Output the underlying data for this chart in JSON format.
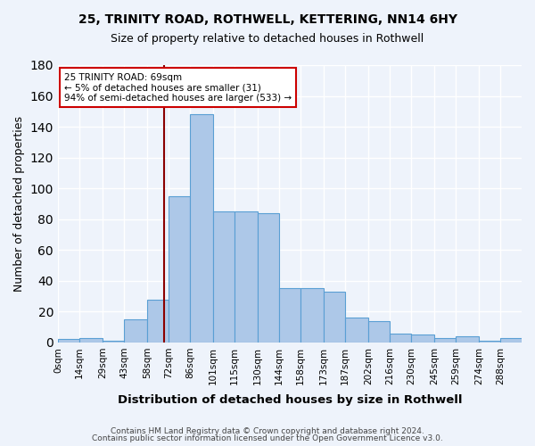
{
  "title_line1": "25, TRINITY ROAD, ROTHWELL, KETTERING, NN14 6HY",
  "title_line2": "Size of property relative to detached houses in Rothwell",
  "xlabel": "Distribution of detached houses by size in Rothwell",
  "ylabel": "Number of detached properties",
  "bin_labels": [
    "0sqm",
    "14sqm",
    "29sqm",
    "43sqm",
    "58sqm",
    "72sqm",
    "86sqm",
    "101sqm",
    "115sqm",
    "130sqm",
    "144sqm",
    "158sqm",
    "173sqm",
    "187sqm",
    "202sqm",
    "216sqm",
    "230sqm",
    "245sqm",
    "259sqm",
    "274sqm",
    "288sqm"
  ],
  "bar_values": [
    2,
    3,
    1,
    15,
    28,
    95,
    148,
    85,
    85,
    84,
    35,
    35,
    33,
    16,
    14,
    6,
    5,
    3,
    4,
    1,
    3
  ],
  "bin_edges": [
    0,
    14,
    29,
    43,
    58,
    72,
    86,
    101,
    115,
    130,
    144,
    158,
    173,
    187,
    202,
    216,
    230,
    245,
    259,
    274,
    288,
    302
  ],
  "bar_color": "#adc8e8",
  "bar_edge_color": "#5a9fd4",
  "vline_x": 69,
  "vline_color": "#8b0000",
  "annotation_text": "25 TRINITY ROAD: 69sqm\n← 5% of detached houses are smaller (31)\n94% of semi-detached houses are larger (533) →",
  "annotation_box_color": "#ffffff",
  "annotation_box_edge": "#cc0000",
  "ylim": [
    0,
    180
  ],
  "yticks": [
    0,
    20,
    40,
    60,
    80,
    100,
    120,
    140,
    160,
    180
  ],
  "footer_line1": "Contains HM Land Registry data © Crown copyright and database right 2024.",
  "footer_line2": "Contains public sector information licensed under the Open Government Licence v3.0.",
  "background_color": "#eef3fb",
  "grid_color": "#ffffff"
}
